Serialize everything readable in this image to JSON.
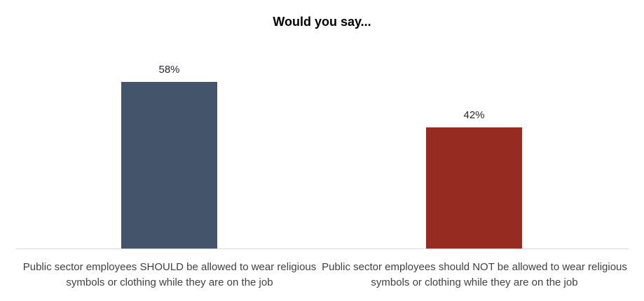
{
  "title": "Would you say...",
  "chart_data": {
    "type": "bar",
    "title": "Would you say...",
    "categories": [
      "Public sector employees SHOULD be allowed to wear religious symbols or clothing while they are on the job",
      "Public sector employees should NOT be allowed to wear religious symbols or clothing while they are on the job"
    ],
    "values": [
      58,
      42
    ],
    "value_labels": [
      "58%",
      "42%"
    ],
    "colors": [
      "#44546A",
      "#962B22"
    ],
    "xlabel": "",
    "ylabel": "",
    "ylim": [
      0,
      70
    ],
    "grid": false,
    "legend": false,
    "axis_baseline_color": "#D9D9D9"
  }
}
